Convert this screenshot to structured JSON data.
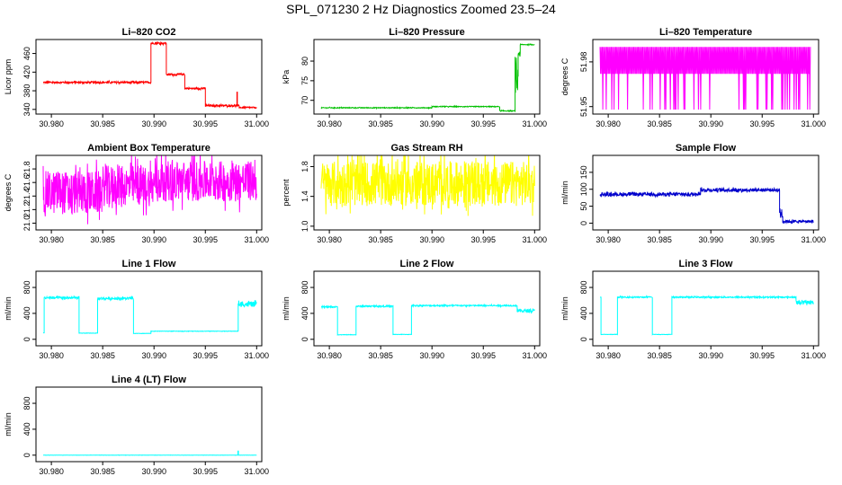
{
  "figure": {
    "title": "SPL_071230  2 Hz Diagnostics Zoomed 23.5–24"
  },
  "chart_data": [
    {
      "type": "line",
      "title": "Li–820 CO2",
      "ylabel": "Licor ppm",
      "color": "#ff0000",
      "xlim": [
        30.9785,
        31.0005
      ],
      "ylim": [
        330,
        490
      ],
      "xticks": [
        "30.980",
        "30.985",
        "30.990",
        "30.995",
        "31.000"
      ],
      "yticks": [
        "340",
        "380",
        "420",
        "460"
      ],
      "series": [
        {
          "name": "CO2",
          "segments": [
            {
              "x0": 30.9792,
              "x1": 30.9897,
              "y": 398,
              "noise": 2
            },
            {
              "x0": 30.9897,
              "x1": 30.9912,
              "y": 482,
              "noise": 2
            },
            {
              "x0": 30.9912,
              "x1": 30.993,
              "y": 415,
              "noise": 2
            },
            {
              "x0": 30.993,
              "x1": 30.995,
              "y": 385,
              "noise": 2
            },
            {
              "x0": 30.995,
              "x1": 30.9983,
              "y": 348,
              "noise": 2
            },
            {
              "x0": 30.9983,
              "x1": 31.0,
              "y": 344,
              "noise": 1.5
            }
          ],
          "spikes": [
            {
              "x": 30.9981,
              "y0": 346,
              "y1": 378
            }
          ]
        }
      ]
    },
    {
      "type": "line",
      "title": "Li–820 Pressure",
      "ylabel": "kPa",
      "color": "#00c000",
      "xlim": [
        30.9785,
        31.0005
      ],
      "ylim": [
        66.5,
        85.5
      ],
      "xticks": [
        "30.980",
        "30.985",
        "30.990",
        "30.995",
        "31.000"
      ],
      "yticks": [
        "70",
        "75",
        "80"
      ],
      "series": [
        {
          "name": "Pressure",
          "segments": [
            {
              "x0": 30.9792,
              "x1": 30.99,
              "y": 68.1,
              "noise": 0.1
            },
            {
              "x0": 30.99,
              "x1": 30.9966,
              "y": 68.4,
              "noise": 0.1
            },
            {
              "x0": 30.9966,
              "x1": 30.9981,
              "y": 67.3,
              "noise": 0.1
            },
            {
              "x0": 30.9981,
              "x1": 30.9984,
              "y": 75,
              "noise": 4
            },
            {
              "x0": 30.9984,
              "x1": 30.9986,
              "y": 82,
              "noise": 1
            },
            {
              "x0": 30.9986,
              "x1": 31.0,
              "y": 84.2,
              "noise": 0.1
            }
          ]
        }
      ]
    },
    {
      "type": "line",
      "title": "Li–820 Temperature",
      "ylabel": "degrees C",
      "color": "#ff00ff",
      "xlim": [
        30.9785,
        31.0005
      ],
      "ylim": [
        51.945,
        51.995
      ],
      "xticks": [
        "30.980",
        "30.985",
        "30.990",
        "30.995",
        "31.000"
      ],
      "yticks": [
        "51.95",
        "51.98"
      ],
      "series": [
        {
          "name": "Temperature",
          "toggle": {
            "x0": 30.9792,
            "x1": 30.9997,
            "high": 51.99,
            "low": 51.972,
            "deep": 51.948
          }
        }
      ]
    },
    {
      "type": "line",
      "title": "Ambient Box Temperature",
      "ylabel": "degrees C",
      "color": "#ff00ff",
      "xlim": [
        30.9785,
        31.0005
      ],
      "ylim": [
        20.9,
        22.0
      ],
      "xticks": [
        "30.980",
        "30.985",
        "30.990",
        "30.995",
        "31.000"
      ],
      "yticks": [
        "21.0",
        "21.2",
        "21.4",
        "21.6",
        "21.8"
      ],
      "series": [
        {
          "name": "Ambient",
          "segments": [
            {
              "x0": 30.9792,
              "x1": 30.985,
              "y": 21.45,
              "noise": 0.32
            },
            {
              "x0": 30.985,
              "x1": 30.99,
              "y": 21.55,
              "noise": 0.3
            },
            {
              "x0": 30.99,
              "x1": 31.0,
              "y": 21.62,
              "noise": 0.3
            }
          ]
        }
      ]
    },
    {
      "type": "line",
      "title": "Gas Stream RH",
      "ylabel": "percent",
      "color": "#ffff00",
      "xlim": [
        30.9785,
        31.0005
      ],
      "ylim": [
        0.95,
        1.95
      ],
      "xticks": [
        "30.980",
        "30.985",
        "30.990",
        "30.995",
        "31.000"
      ],
      "yticks": [
        "1.0",
        "1.4",
        "1.8"
      ],
      "series": [
        {
          "name": "RH",
          "segments": [
            {
              "x0": 30.9792,
              "x1": 31.0,
              "y": 1.57,
              "noise": 0.3
            }
          ]
        }
      ]
    },
    {
      "type": "line",
      "title": "Sample Flow",
      "ylabel": "ml/min",
      "color": "#0000cc",
      "xlim": [
        30.9785,
        31.0005
      ],
      "ylim": [
        -20,
        200
      ],
      "xticks": [
        "30.980",
        "30.985",
        "30.990",
        "30.995",
        "31.000"
      ],
      "yticks": [
        "0",
        "50",
        "100",
        "150"
      ],
      "series": [
        {
          "name": "Sample",
          "segments": [
            {
              "x0": 30.9792,
              "x1": 30.9885,
              "y": 85,
              "noise": 5
            },
            {
              "x0": 30.9885,
              "x1": 30.989,
              "y": 88,
              "noise": 5
            },
            {
              "x0": 30.989,
              "x1": 30.9967,
              "y": 98,
              "noise": 5
            },
            {
              "x0": 30.9967,
              "x1": 30.997,
              "y": 30,
              "noise": 20
            },
            {
              "x0": 30.997,
              "x1": 31.0,
              "y": 5,
              "noise": 4
            }
          ]
        }
      ]
    },
    {
      "type": "line",
      "title": "Line 1 Flow",
      "ylabel": "ml/min",
      "color": "#00ffff",
      "xlim": [
        30.9785,
        31.0005
      ],
      "ylim": [
        -100,
        1050
      ],
      "xticks": [
        "30.980",
        "30.985",
        "30.990",
        "30.995",
        "31.000"
      ],
      "yticks": [
        "0",
        "400",
        "800"
      ],
      "series": [
        {
          "name": "Line1",
          "segments": [
            {
              "x0": 30.9792,
              "x1": 30.9793,
              "y": 100,
              "noise": 0
            },
            {
              "x0": 30.9793,
              "x1": 30.9827,
              "y": 640,
              "noise": 20
            },
            {
              "x0": 30.9827,
              "x1": 30.9845,
              "y": 95,
              "noise": 3
            },
            {
              "x0": 30.9845,
              "x1": 30.988,
              "y": 630,
              "noise": 20
            },
            {
              "x0": 30.988,
              "x1": 30.9897,
              "y": 90,
              "noise": 3
            },
            {
              "x0": 30.9897,
              "x1": 30.9982,
              "y": 125,
              "noise": 3
            },
            {
              "x0": 30.9982,
              "x1": 31.0,
              "y": 540,
              "noise": 40
            }
          ]
        }
      ]
    },
    {
      "type": "line",
      "title": "Line 2 Flow",
      "ylabel": "ml/min",
      "color": "#00ffff",
      "xlim": [
        30.9785,
        31.0005
      ],
      "ylim": [
        -100,
        1050
      ],
      "xticks": [
        "30.980",
        "30.985",
        "30.990",
        "30.995",
        "31.000"
      ],
      "yticks": [
        "0",
        "400",
        "800"
      ],
      "series": [
        {
          "name": "Line2",
          "segments": [
            {
              "x0": 30.9792,
              "x1": 30.9808,
              "y": 500,
              "noise": 10
            },
            {
              "x0": 30.9808,
              "x1": 30.9826,
              "y": 70,
              "noise": 3
            },
            {
              "x0": 30.9826,
              "x1": 30.9862,
              "y": 510,
              "noise": 10
            },
            {
              "x0": 30.9862,
              "x1": 30.988,
              "y": 75,
              "noise": 3
            },
            {
              "x0": 30.988,
              "x1": 30.9983,
              "y": 520,
              "noise": 10
            },
            {
              "x0": 30.9983,
              "x1": 31.0,
              "y": 440,
              "noise": 25
            }
          ]
        }
      ]
    },
    {
      "type": "line",
      "title": "Line 3 Flow",
      "ylabel": "ml/min",
      "color": "#00ffff",
      "xlim": [
        30.9785,
        31.0005
      ],
      "ylim": [
        -100,
        1050
      ],
      "xticks": [
        "30.980",
        "30.985",
        "30.990",
        "30.995",
        "31.000"
      ],
      "yticks": [
        "0",
        "400",
        "800"
      ],
      "series": [
        {
          "name": "Line3",
          "segments": [
            {
              "x0": 30.9792,
              "x1": 30.9793,
              "y": 650,
              "noise": 0
            },
            {
              "x0": 30.9793,
              "x1": 30.9809,
              "y": 75,
              "noise": 3
            },
            {
              "x0": 30.9809,
              "x1": 30.9843,
              "y": 650,
              "noise": 10
            },
            {
              "x0": 30.9843,
              "x1": 30.9862,
              "y": 75,
              "noise": 3
            },
            {
              "x0": 30.9862,
              "x1": 30.9983,
              "y": 650,
              "noise": 10
            },
            {
              "x0": 30.9983,
              "x1": 31.0,
              "y": 570,
              "noise": 30
            }
          ]
        }
      ]
    },
    {
      "type": "line",
      "title": "Line 4 (LT) Flow",
      "ylabel": "ml/min",
      "color": "#00ffff",
      "xlim": [
        30.9785,
        31.0005
      ],
      "ylim": [
        -100,
        1050
      ],
      "xticks": [
        "30.980",
        "30.985",
        "30.990",
        "30.995",
        "31.000"
      ],
      "yticks": [
        "0",
        "400",
        "800"
      ],
      "series": [
        {
          "name": "Line4",
          "segments": [
            {
              "x0": 30.9792,
              "x1": 31.0,
              "y": 0,
              "noise": 1.5
            }
          ],
          "spikes": [
            {
              "x": 30.9982,
              "y0": 0,
              "y1": 70
            }
          ]
        }
      ]
    }
  ]
}
